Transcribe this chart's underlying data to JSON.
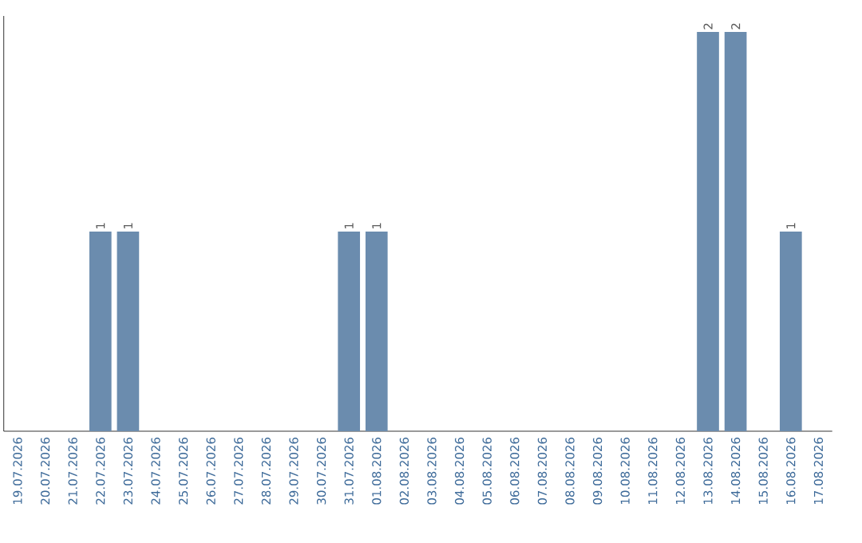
{
  "chart_data": {
    "type": "bar",
    "categories": [
      "19.07.2026",
      "20.07.2026",
      "21.07.2026",
      "22.07.2026",
      "23.07.2026",
      "24.07.2026",
      "25.07.2026",
      "26.07.2026",
      "27.07.2026",
      "28.07.2026",
      "29.07.2026",
      "30.07.2026",
      "31.07.2026",
      "01.08.2026",
      "02.08.2026",
      "03.08.2026",
      "04.08.2026",
      "05.08.2026",
      "06.08.2026",
      "07.08.2026",
      "08.08.2026",
      "09.08.2026",
      "10.08.2026",
      "11.08.2026",
      "12.08.2026",
      "13.08.2026",
      "14.08.2026",
      "15.08.2026",
      "16.08.2026",
      "17.08.2026"
    ],
    "values": [
      0,
      0,
      0,
      1,
      1,
      0,
      0,
      0,
      0,
      0,
      0,
      0,
      1,
      1,
      0,
      0,
      0,
      0,
      0,
      0,
      0,
      0,
      0,
      0,
      0,
      2,
      2,
      0,
      1,
      0
    ],
    "value_labels": [
      null,
      null,
      null,
      "1",
      "1",
      null,
      null,
      null,
      null,
      null,
      null,
      null,
      "1",
      "1",
      null,
      null,
      null,
      null,
      null,
      null,
      null,
      null,
      null,
      null,
      null,
      "2",
      "2",
      null,
      "1",
      null
    ],
    "color": "#6b8cae",
    "ylim": [
      0,
      2.08
    ]
  }
}
